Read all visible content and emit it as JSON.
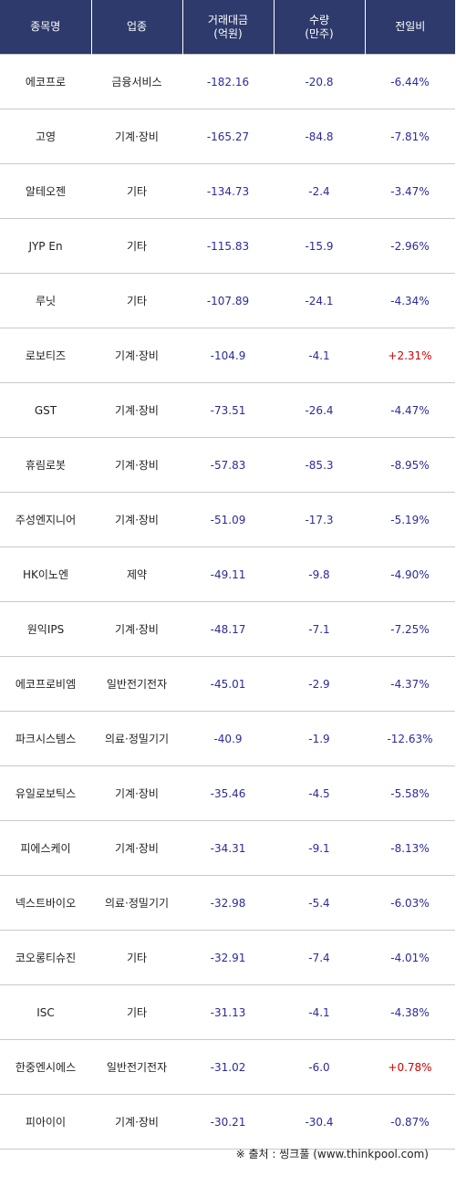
{
  "header": {
    "col_name": "종목명",
    "col_sector": "업종",
    "col_amount_line1": "거래대금",
    "col_amount_line2": "(억원)",
    "col_volume_line1": "수량",
    "col_volume_line2": "(만주)",
    "col_change": "전일비"
  },
  "rows": [
    {
      "name": "에코프로",
      "sector": "금융서비스",
      "amount": "-182.16",
      "volume": "-20.8",
      "change": "-6.44%"
    },
    {
      "name": "고영",
      "sector": "기계·장비",
      "amount": "-165.27",
      "volume": "-84.8",
      "change": "-7.81%"
    },
    {
      "name": "알테오젠",
      "sector": "기타",
      "amount": "-134.73",
      "volume": "-2.4",
      "change": "-3.47%"
    },
    {
      "name": "JYP En",
      "sector": "기타",
      "amount": "-115.83",
      "volume": "-15.9",
      "change": "-2.96%"
    },
    {
      "name": "루닛",
      "sector": "기타",
      "amount": "-107.89",
      "volume": "-24.1",
      "change": "-4.34%"
    },
    {
      "name": "로보티즈",
      "sector": "기계·장비",
      "amount": "-104.9",
      "volume": "-4.1",
      "change": "+2.31%"
    },
    {
      "name": "GST",
      "sector": "기계·장비",
      "amount": "-73.51",
      "volume": "-26.4",
      "change": "-4.47%"
    },
    {
      "name": "휴림로봇",
      "sector": "기계·장비",
      "amount": "-57.83",
      "volume": "-85.3",
      "change": "-8.95%"
    },
    {
      "name": "주성엔지니어",
      "sector": "기계·장비",
      "amount": "-51.09",
      "volume": "-17.3",
      "change": "-5.19%"
    },
    {
      "name": "HK이노엔",
      "sector": "제약",
      "amount": "-49.11",
      "volume": "-9.8",
      "change": "-4.90%"
    },
    {
      "name": "원익IPS",
      "sector": "기계·장비",
      "amount": "-48.17",
      "volume": "-7.1",
      "change": "-7.25%"
    },
    {
      "name": "에코프로비엠",
      "sector": "일반전기전자",
      "amount": "-45.01",
      "volume": "-2.9",
      "change": "-4.37%"
    },
    {
      "name": "파크시스템스",
      "sector": "의료·정밀기기",
      "amount": "-40.9",
      "volume": "-1.9",
      "change": "-12.63%"
    },
    {
      "name": "유일로보틱스",
      "sector": "기계·장비",
      "amount": "-35.46",
      "volume": "-4.5",
      "change": "-5.58%"
    },
    {
      "name": "피에스케이",
      "sector": "기계·장비",
      "amount": "-34.31",
      "volume": "-9.1",
      "change": "-8.13%"
    },
    {
      "name": "넥스트바이오",
      "sector": "의료·정밀기기",
      "amount": "-32.98",
      "volume": "-5.4",
      "change": "-6.03%"
    },
    {
      "name": "코오롱티슈진",
      "sector": "기타",
      "amount": "-32.91",
      "volume": "-7.4",
      "change": "-4.01%"
    },
    {
      "name": "ISC",
      "sector": "기타",
      "amount": "-31.13",
      "volume": "-4.1",
      "change": "-4.38%"
    },
    {
      "name": "한중엔시에스",
      "sector": "일반전기전자",
      "amount": "-31.02",
      "volume": "-6.0",
      "change": "+0.78%"
    },
    {
      "name": "피아이이",
      "sector": "기계·장비",
      "amount": "-30.21",
      "volume": "-30.4",
      "change": "-0.87%"
    }
  ],
  "source": "※ 출처 : 씽크풀 (www.thinkpool.com)",
  "colors": {
    "header_bg": "#2d3a6b",
    "value_blue": "#2b2b9a",
    "value_red": "#d00000"
  }
}
